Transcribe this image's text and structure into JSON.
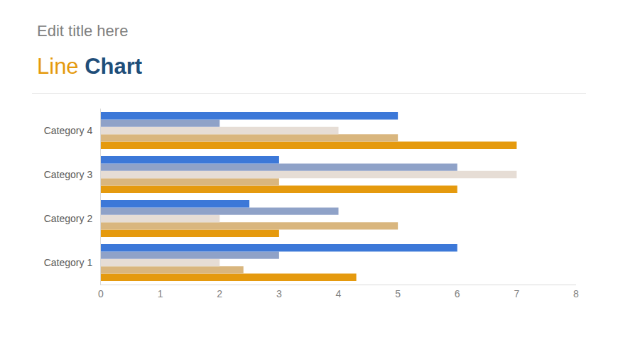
{
  "chart_data": {
    "type": "bar",
    "orientation": "horizontal",
    "title": "Line Chart",
    "subtitle": "Edit title here",
    "categories": [
      "Category 1",
      "Category 2",
      "Category 3",
      "Category 4"
    ],
    "series": [
      {
        "color": "#e59a0e",
        "values": [
          4.3,
          3,
          6,
          7
        ]
      },
      {
        "color": "#d9b67e",
        "values": [
          2.4,
          5,
          3,
          5
        ]
      },
      {
        "color": "#e6ddd5",
        "values": [
          2,
          2,
          7,
          4
        ]
      },
      {
        "color": "#8fa2c8",
        "values": [
          3,
          4,
          6,
          2
        ]
      },
      {
        "color": "#3c78d8",
        "values": [
          6,
          2.5,
          3,
          5
        ]
      }
    ],
    "xlim": [
      0,
      8
    ],
    "xticks": [
      0,
      1,
      2,
      3,
      4,
      5,
      6,
      7,
      8
    ],
    "grid": false
  }
}
